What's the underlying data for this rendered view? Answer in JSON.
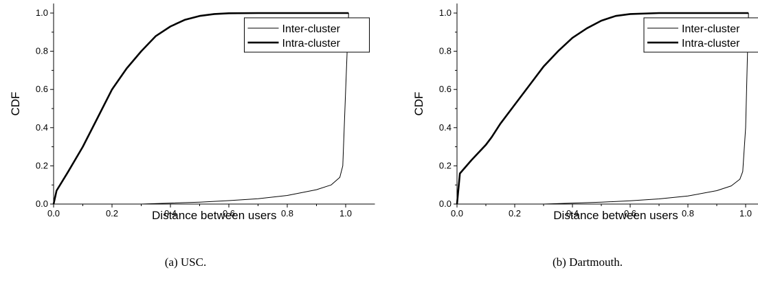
{
  "chart_data": [
    {
      "type": "line",
      "caption": "(a) USC.",
      "xlabel": "Distance between users",
      "ylabel": "CDF",
      "xlim": [
        0.0,
        1.1
      ],
      "ylim": [
        0.0,
        1.05
      ],
      "xticks": [
        "0.0",
        "0.2",
        "0.4",
        "0.6",
        "0.8",
        "1.0"
      ],
      "yticks": [
        "0.0",
        "0.2",
        "0.4",
        "0.6",
        "0.8",
        "1.0"
      ],
      "legend_position": "top-right",
      "series": [
        {
          "name": "Inter-cluster",
          "style": "thin",
          "x": [
            0.0,
            0.3,
            0.4,
            0.5,
            0.6,
            0.7,
            0.8,
            0.9,
            0.95,
            0.98,
            0.99,
            1.0,
            1.01
          ],
          "y": [
            0.0,
            0.0,
            0.005,
            0.01,
            0.018,
            0.028,
            0.045,
            0.075,
            0.1,
            0.14,
            0.2,
            0.6,
            1.0
          ]
        },
        {
          "name": "Intra-cluster",
          "style": "thick",
          "x": [
            0.0,
            0.01,
            0.05,
            0.1,
            0.15,
            0.2,
            0.25,
            0.3,
            0.35,
            0.4,
            0.45,
            0.5,
            0.55,
            0.6,
            0.7,
            0.8,
            1.01
          ],
          "y": [
            0.0,
            0.07,
            0.17,
            0.3,
            0.45,
            0.6,
            0.71,
            0.8,
            0.88,
            0.93,
            0.965,
            0.985,
            0.995,
            0.999,
            1.0,
            1.0,
            1.0
          ]
        }
      ]
    },
    {
      "type": "line",
      "caption": "(b) Dartmouth.",
      "xlabel": "Distance between users",
      "ylabel": "CDF",
      "xlim": [
        0.0,
        1.1
      ],
      "ylim": [
        0.0,
        1.05
      ],
      "xticks": [
        "0.0",
        "0.2",
        "0.4",
        "0.6",
        "0.8",
        "1.0"
      ],
      "yticks": [
        "0.0",
        "0.2",
        "0.4",
        "0.6",
        "0.8",
        "1.0"
      ],
      "legend_position": "top-right",
      "series": [
        {
          "name": "Inter-cluster",
          "style": "thin",
          "x": [
            0.0,
            0.3,
            0.4,
            0.5,
            0.6,
            0.7,
            0.8,
            0.9,
            0.95,
            0.98,
            0.99,
            1.0,
            1.01
          ],
          "y": [
            0.0,
            0.0,
            0.005,
            0.01,
            0.017,
            0.027,
            0.042,
            0.07,
            0.095,
            0.13,
            0.17,
            0.4,
            1.0
          ]
        },
        {
          "name": "Intra-cluster",
          "style": "thick",
          "x": [
            0.0,
            0.01,
            0.05,
            0.1,
            0.12,
            0.15,
            0.2,
            0.25,
            0.3,
            0.35,
            0.4,
            0.45,
            0.5,
            0.55,
            0.6,
            0.7,
            0.8,
            1.01
          ],
          "y": [
            0.0,
            0.16,
            0.23,
            0.31,
            0.35,
            0.42,
            0.52,
            0.62,
            0.72,
            0.8,
            0.87,
            0.92,
            0.96,
            0.985,
            0.995,
            1.0,
            1.0,
            1.0
          ]
        }
      ]
    }
  ]
}
